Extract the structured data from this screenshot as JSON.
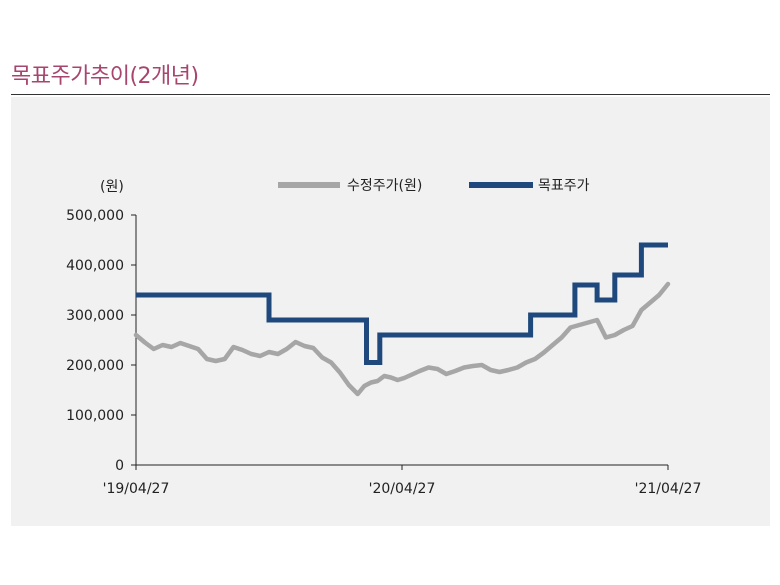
{
  "title": "목표주가추이(2개년)",
  "chart_data": {
    "type": "line",
    "ylabel": "(원)",
    "ylim": [
      0,
      500000
    ],
    "yticks": [
      0,
      100000,
      200000,
      300000,
      400000,
      500000
    ],
    "ytick_labels": [
      "0",
      "100,000",
      "200,000",
      "300,000",
      "400,000",
      "500,000"
    ],
    "xlim": [
      0,
      24
    ],
    "xticks": [
      0,
      12,
      24
    ],
    "xtick_labels": [
      "'19/04/27",
      "'20/04/27",
      "'21/04/27"
    ],
    "colors": {
      "price": "#a6a6a6",
      "target": "#1f497d",
      "title": "#a8456e"
    },
    "series": [
      {
        "name": "수정주가(원)",
        "style": "line",
        "x": [
          0,
          0.4,
          0.8,
          1.2,
          1.6,
          2.0,
          2.4,
          2.8,
          3.2,
          3.6,
          4.0,
          4.4,
          4.8,
          5.2,
          5.6,
          6.0,
          6.4,
          6.8,
          7.2,
          7.6,
          8.0,
          8.4,
          8.8,
          9.2,
          9.6,
          10.0,
          10.3,
          10.6,
          10.9,
          11.2,
          11.5,
          11.8,
          12.1,
          12.4,
          12.8,
          13.2,
          13.6,
          14.0,
          14.4,
          14.8,
          15.2,
          15.6,
          16.0,
          16.4,
          16.8,
          17.2,
          17.6,
          18.0,
          18.4,
          18.8,
          19.2,
          19.6,
          20.0,
          20.4,
          20.8,
          21.2,
          21.6,
          22.0,
          22.4,
          22.8,
          23.2,
          23.6,
          24.0
        ],
        "values": [
          260000,
          245000,
          232000,
          240000,
          236000,
          244000,
          238000,
          232000,
          212000,
          208000,
          212000,
          236000,
          230000,
          222000,
          218000,
          226000,
          222000,
          232000,
          246000,
          238000,
          234000,
          215000,
          205000,
          185000,
          160000,
          142000,
          158000,
          165000,
          168000,
          178000,
          175000,
          170000,
          174000,
          180000,
          188000,
          195000,
          192000,
          182000,
          188000,
          195000,
          198000,
          200000,
          190000,
          186000,
          190000,
          195000,
          205000,
          212000,
          225000,
          240000,
          255000,
          275000,
          280000,
          285000,
          290000,
          255000,
          260000,
          270000,
          278000,
          310000,
          325000,
          340000,
          362000
        ]
      },
      {
        "name": "목표주가",
        "style": "step",
        "x": [
          0,
          6.0,
          6.0,
          10.4,
          10.4,
          11.0,
          11.0,
          17.8,
          17.8,
          19.8,
          19.8,
          20.8,
          20.8,
          21.6,
          21.6,
          22.8,
          22.8,
          24.0
        ],
        "values": [
          340000,
          340000,
          290000,
          290000,
          205000,
          205000,
          260000,
          260000,
          300000,
          300000,
          360000,
          360000,
          330000,
          330000,
          380000,
          380000,
          440000,
          440000
        ]
      }
    ]
  }
}
